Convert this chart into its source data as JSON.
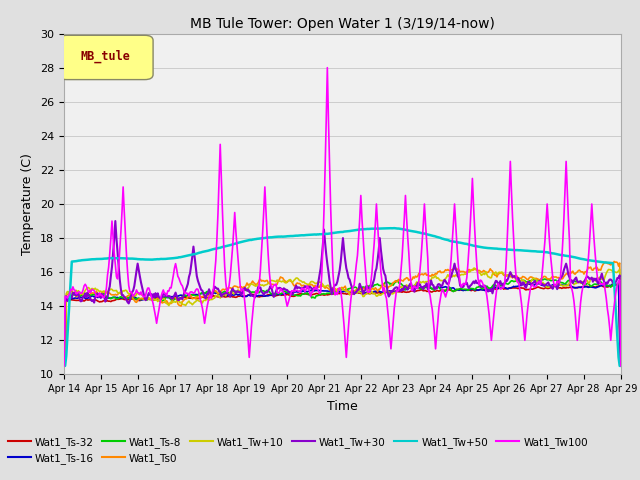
{
  "title": "MB Tule Tower: Open Water 1 (3/19/14-now)",
  "xlabel": "Time",
  "ylabel": "Temperature (C)",
  "ylim": [
    10,
    30
  ],
  "yticks": [
    10,
    12,
    14,
    16,
    18,
    20,
    22,
    24,
    26,
    28,
    30
  ],
  "x_labels": [
    "Apr 14",
    "Apr 15",
    "Apr 16",
    "Apr 17",
    "Apr 18",
    "Apr 19",
    "Apr 20",
    "Apr 21",
    "Apr 22",
    "Apr 23",
    "Apr 24",
    "Apr 25",
    "Apr 26",
    "Apr 27",
    "Apr 28",
    "Apr 29"
  ],
  "series": {
    "Wat1_Ts-32": {
      "color": "#cc0000",
      "lw": 1.2
    },
    "Wat1_Ts-16": {
      "color": "#0000cc",
      "lw": 1.2
    },
    "Wat1_Ts-8": {
      "color": "#00cc00",
      "lw": 1.2
    },
    "Wat1_Ts0": {
      "color": "#ff8800",
      "lw": 1.2
    },
    "Wat1_Tw+10": {
      "color": "#cccc00",
      "lw": 1.2
    },
    "Wat1_Tw+30": {
      "color": "#8800cc",
      "lw": 1.5
    },
    "Wat1_Tw+50": {
      "color": "#00cccc",
      "lw": 1.8
    },
    "Wat1_Tw100": {
      "color": "#ff00ff",
      "lw": 1.2
    }
  },
  "legend_box_color": "#ffff88",
  "legend_box_text": "MB_tule",
  "legend_box_textcolor": "#880000",
  "bg_color": "#e0e0e0",
  "plot_bg": "#f0f0f0"
}
